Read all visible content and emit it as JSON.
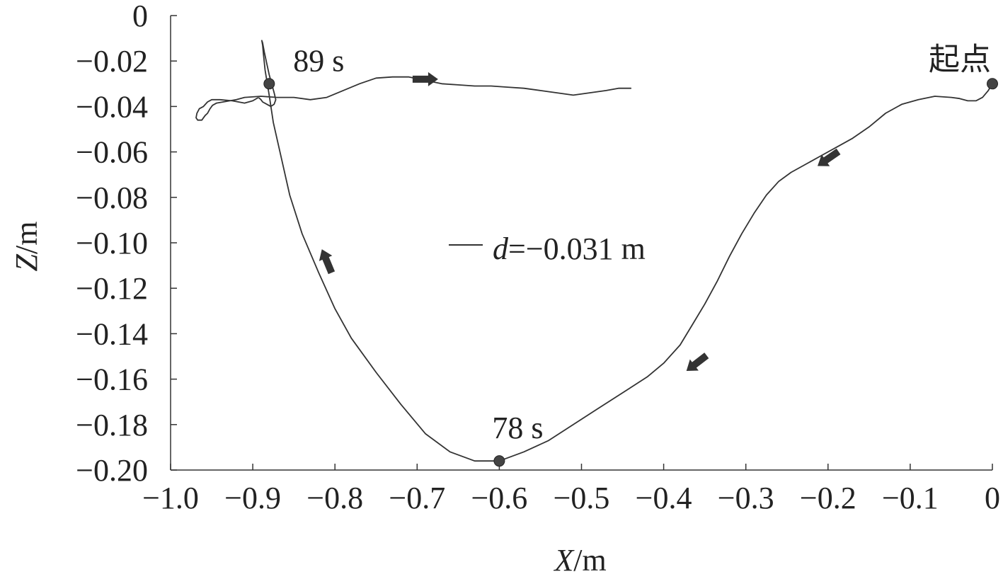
{
  "chart_data": {
    "type": "line",
    "xlabel_var": "X",
    "xlabel_unit": "/m",
    "ylabel_var": "Z",
    "ylabel_unit": "/m",
    "xlim": [
      -1.0,
      0
    ],
    "ylim": [
      -0.2,
      0
    ],
    "xticks": [
      -1.0,
      -0.9,
      -0.8,
      -0.7,
      -0.6,
      -0.5,
      -0.4,
      -0.3,
      -0.2,
      -0.1,
      0
    ],
    "xtick_labels": [
      "−1.0",
      "−0.9",
      "−0.8",
      "−0.7",
      "−0.6",
      "−0.5",
      "−0.4",
      "−0.3",
      "−0.2",
      "−0.1",
      "0"
    ],
    "yticks": [
      0,
      -0.02,
      -0.04,
      -0.06,
      -0.08,
      -0.1,
      -0.12,
      -0.14,
      -0.16,
      -0.18,
      -0.2
    ],
    "ytick_labels": [
      "0",
      "−0.02",
      "−0.04",
      "−0.06",
      "−0.08",
      "−0.10",
      "−0.12",
      "−0.14",
      "−0.16",
      "−0.18",
      "−0.20"
    ],
    "grid": false,
    "series": [
      {
        "x": [
          0.0,
          -0.005,
          -0.012,
          -0.02,
          -0.03,
          -0.04,
          -0.05,
          -0.07,
          -0.09,
          -0.11,
          -0.13,
          -0.15,
          -0.17,
          -0.19,
          -0.21,
          -0.23,
          -0.245,
          -0.26,
          -0.275,
          -0.29,
          -0.305,
          -0.32,
          -0.335,
          -0.35,
          -0.365,
          -0.38,
          -0.4,
          -0.42,
          -0.45,
          -0.48,
          -0.51,
          -0.54,
          -0.57,
          -0.6,
          -0.63,
          -0.66,
          -0.69,
          -0.72,
          -0.75,
          -0.78,
          -0.8,
          -0.82,
          -0.84,
          -0.855,
          -0.865,
          -0.875,
          -0.88,
          -0.885,
          -0.887,
          -0.888,
          -0.889,
          -0.888,
          -0.886,
          -0.883,
          -0.88,
          -0.877,
          -0.874,
          -0.872,
          -0.874,
          -0.878,
          -0.883,
          -0.888,
          -0.89,
          -0.893,
          -0.9,
          -0.91,
          -0.925,
          -0.94,
          -0.95,
          -0.955,
          -0.96,
          -0.965,
          -0.968,
          -0.969,
          -0.967,
          -0.962,
          -0.958,
          -0.955,
          -0.952,
          -0.949,
          -0.944,
          -0.936,
          -0.928,
          -0.92,
          -0.91,
          -0.89,
          -0.87,
          -0.85,
          -0.83,
          -0.81,
          -0.79,
          -0.77,
          -0.75,
          -0.73,
          -0.71,
          -0.69,
          -0.67,
          -0.65,
          -0.63,
          -0.61,
          -0.59,
          -0.57,
          -0.55,
          -0.53,
          -0.51,
          -0.49,
          -0.47,
          -0.455,
          -0.44
        ],
        "y": [
          -0.03,
          -0.033,
          -0.036,
          -0.0375,
          -0.0375,
          -0.0365,
          -0.036,
          -0.0355,
          -0.037,
          -0.039,
          -0.043,
          -0.049,
          -0.054,
          -0.058,
          -0.062,
          -0.066,
          -0.069,
          -0.073,
          -0.079,
          -0.087,
          -0.096,
          -0.106,
          -0.117,
          -0.127,
          -0.136,
          -0.145,
          -0.153,
          -0.159,
          -0.166,
          -0.173,
          -0.18,
          -0.187,
          -0.192,
          -0.196,
          -0.196,
          -0.192,
          -0.184,
          -0.171,
          -0.157,
          -0.142,
          -0.129,
          -0.113,
          -0.096,
          -0.079,
          -0.063,
          -0.047,
          -0.035,
          -0.024,
          -0.017,
          -0.013,
          -0.011,
          -0.012,
          -0.016,
          -0.021,
          -0.026,
          -0.03,
          -0.034,
          -0.037,
          -0.039,
          -0.04,
          -0.039,
          -0.038,
          -0.037,
          -0.036,
          -0.0375,
          -0.0385,
          -0.0375,
          -0.037,
          -0.037,
          -0.038,
          -0.04,
          -0.041,
          -0.043,
          -0.045,
          -0.046,
          -0.046,
          -0.044,
          -0.043,
          -0.041,
          -0.0395,
          -0.0385,
          -0.038,
          -0.0375,
          -0.037,
          -0.036,
          -0.0355,
          -0.036,
          -0.036,
          -0.037,
          -0.036,
          -0.033,
          -0.03,
          -0.0275,
          -0.027,
          -0.027,
          -0.0285,
          -0.03,
          -0.0305,
          -0.031,
          -0.031,
          -0.0315,
          -0.032,
          -0.033,
          -0.034,
          -0.035,
          -0.034,
          -0.033,
          -0.032,
          -0.032
        ]
      }
    ],
    "points": [
      {
        "x": 0.0,
        "y": -0.03,
        "label": "起点"
      },
      {
        "x": -0.6,
        "y": -0.196,
        "label": "78 s"
      },
      {
        "x": -0.88,
        "y": -0.03,
        "label": "89 s"
      }
    ],
    "arrows": [
      {
        "x": -0.2,
        "y": -0.063,
        "toward_x": -0.22,
        "toward_y": -0.068
      },
      {
        "x": -0.36,
        "y": -0.153,
        "toward_x": -0.378,
        "toward_y": -0.158
      },
      {
        "x": -0.81,
        "y": -0.108,
        "toward_x": -0.818,
        "toward_y": -0.101
      },
      {
        "x": -0.69,
        "y": -0.028,
        "toward_x": -0.66,
        "toward_y": -0.028
      }
    ],
    "annotation": {
      "var": "d",
      "value": "=−0.031 m"
    }
  }
}
